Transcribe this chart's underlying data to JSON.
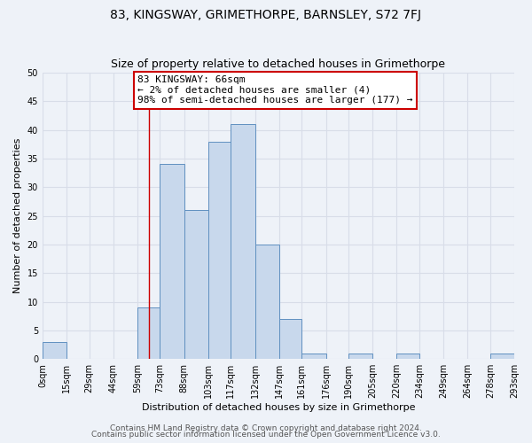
{
  "title": "83, KINGSWAY, GRIMETHORPE, BARNSLEY, S72 7FJ",
  "subtitle": "Size of property relative to detached houses in Grimethorpe",
  "xlabel": "Distribution of detached houses by size in Grimethorpe",
  "ylabel": "Number of detached properties",
  "bar_color": "#c8d8ec",
  "bar_edge_color": "#6090c0",
  "bin_edges": [
    0,
    15,
    29,
    44,
    59,
    73,
    88,
    103,
    117,
    132,
    147,
    161,
    176,
    190,
    205,
    220,
    234,
    249,
    264,
    278,
    293
  ],
  "bin_labels": [
    "0sqm",
    "15sqm",
    "29sqm",
    "44sqm",
    "59sqm",
    "73sqm",
    "88sqm",
    "103sqm",
    "117sqm",
    "132sqm",
    "147sqm",
    "161sqm",
    "176sqm",
    "190sqm",
    "205sqm",
    "220sqm",
    "234sqm",
    "249sqm",
    "264sqm",
    "278sqm",
    "293sqm"
  ],
  "counts": [
    3,
    0,
    0,
    0,
    9,
    34,
    26,
    38,
    41,
    20,
    7,
    1,
    0,
    1,
    0,
    1,
    0,
    0,
    0,
    1
  ],
  "ylim": [
    0,
    50
  ],
  "yticks": [
    0,
    5,
    10,
    15,
    20,
    25,
    30,
    35,
    40,
    45,
    50
  ],
  "property_line_x": 66,
  "annotation_text": "83 KINGSWAY: 66sqm\n← 2% of detached houses are smaller (4)\n98% of semi-detached houses are larger (177) →",
  "annotation_box_color": "#ffffff",
  "annotation_box_edge_color": "#cc0000",
  "footer_line1": "Contains HM Land Registry data © Crown copyright and database right 2024.",
  "footer_line2": "Contains public sector information licensed under the Open Government Licence v3.0.",
  "background_color": "#eef2f8",
  "grid_color": "#d8dde8",
  "title_fontsize": 10,
  "subtitle_fontsize": 9,
  "axis_label_fontsize": 8,
  "tick_fontsize": 7,
  "annotation_fontsize": 8,
  "footer_fontsize": 6.5
}
